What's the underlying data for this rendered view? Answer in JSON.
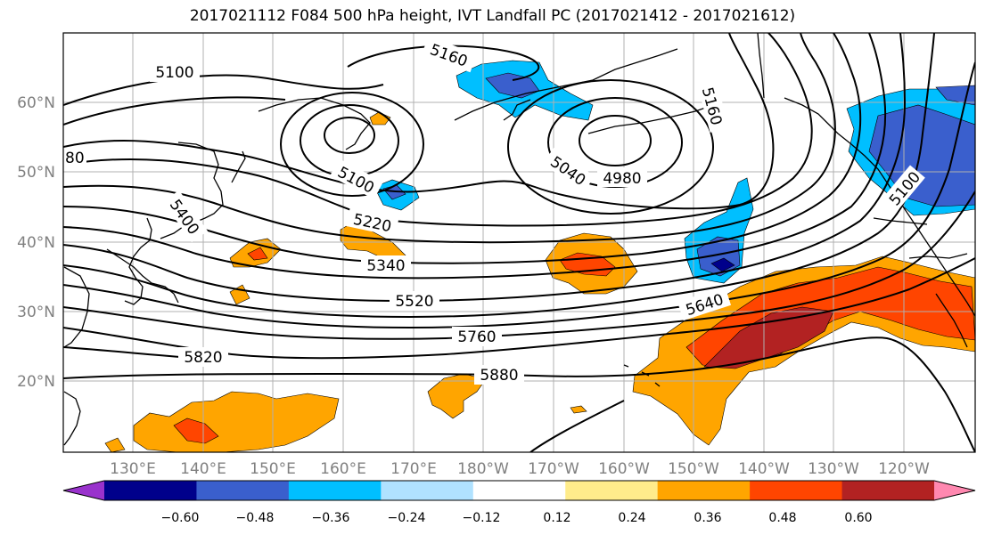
{
  "title": "2017021112 F084 500 hPa height, IVT Landfall PC (2017021412 - 2017021612)",
  "lat_labels": [
    "60°N",
    "50°N",
    "40°N",
    "30°N",
    "20°N"
  ],
  "lon_labels": [
    "130°E",
    "140°E",
    "150°E",
    "160°E",
    "170°E",
    "180°W",
    "170°W",
    "160°W",
    "150°W",
    "140°W",
    "130°W",
    "120°W"
  ],
  "contour_labels": [
    "5100",
    "5160",
    "4980",
    "5040",
    "5100",
    "5220",
    "5400",
    "5340",
    "5520",
    "5640",
    "5760",
    "5820",
    "5880",
    "80",
    "5160",
    "5100"
  ],
  "colorbar": {
    "ticks": [
      "−0.60",
      "−0.48",
      "−0.36",
      "−0.24",
      "−0.12",
      "0.12",
      "0.24",
      "0.36",
      "0.48",
      "0.60"
    ],
    "colors": [
      "#9932cc",
      "#00008b",
      "#3a5fcd",
      "#00bfff",
      "#b0e2ff",
      "#ffffff",
      "#ffec8b",
      "#ffa500",
      "#ff4500",
      "#b22222",
      "#ff88b0"
    ]
  }
}
